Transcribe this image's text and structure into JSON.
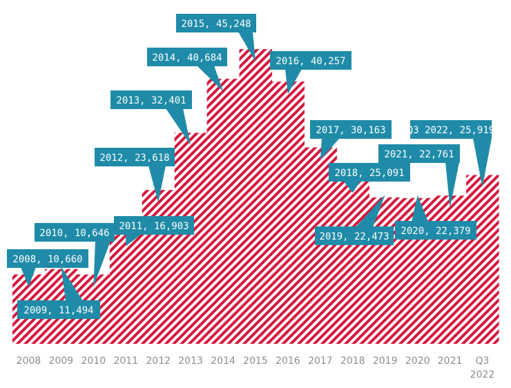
{
  "chart_data": {
    "type": "area",
    "title": "",
    "xlabel": "",
    "ylabel": "",
    "categories": [
      "2008",
      "2009",
      "2010",
      "2011",
      "2012",
      "2013",
      "2014",
      "2015",
      "2016",
      "2017",
      "2018",
      "2019",
      "2020",
      "2021",
      "Q3 2022"
    ],
    "values": [
      10660,
      11494,
      10646,
      16903,
      23618,
      32401,
      40684,
      45248,
      40257,
      30163,
      25091,
      22473,
      22379,
      22761,
      25919
    ],
    "data_labels": [
      "2008, 10,660",
      "2009, 11,494",
      "2010, 10,646",
      "2011, 16,903",
      "2012, 23,618",
      "2013, 32,401",
      "2014, 40,684",
      "2015, 45,248",
      "2016, 40,257",
      "2017, 30,163",
      "2018, 25,091",
      "2019, 22,473",
      "2020, 22,379",
      "2021, 22,761",
      "Q3 2022, 25,919"
    ],
    "x_tick_labels": [
      [
        "2008"
      ],
      [
        "2009"
      ],
      [
        "2010"
      ],
      [
        "2011"
      ],
      [
        "2012"
      ],
      [
        "2013"
      ],
      [
        "2014"
      ],
      [
        "2015"
      ],
      [
        "2016"
      ],
      [
        "2017"
      ],
      [
        "2018"
      ],
      [
        "2019"
      ],
      [
        "2020"
      ],
      [
        "2021"
      ],
      [
        "Q3",
        "2022"
      ]
    ],
    "ylim": [
      0,
      46000
    ],
    "grid": false,
    "legend": "none",
    "style": "step area with diagonal hatch fill",
    "colors": {
      "fill": "#d6173c",
      "callout": "#1f8ba8",
      "callout_text": "#ffffff",
      "tick": "#8c8c8c"
    }
  }
}
